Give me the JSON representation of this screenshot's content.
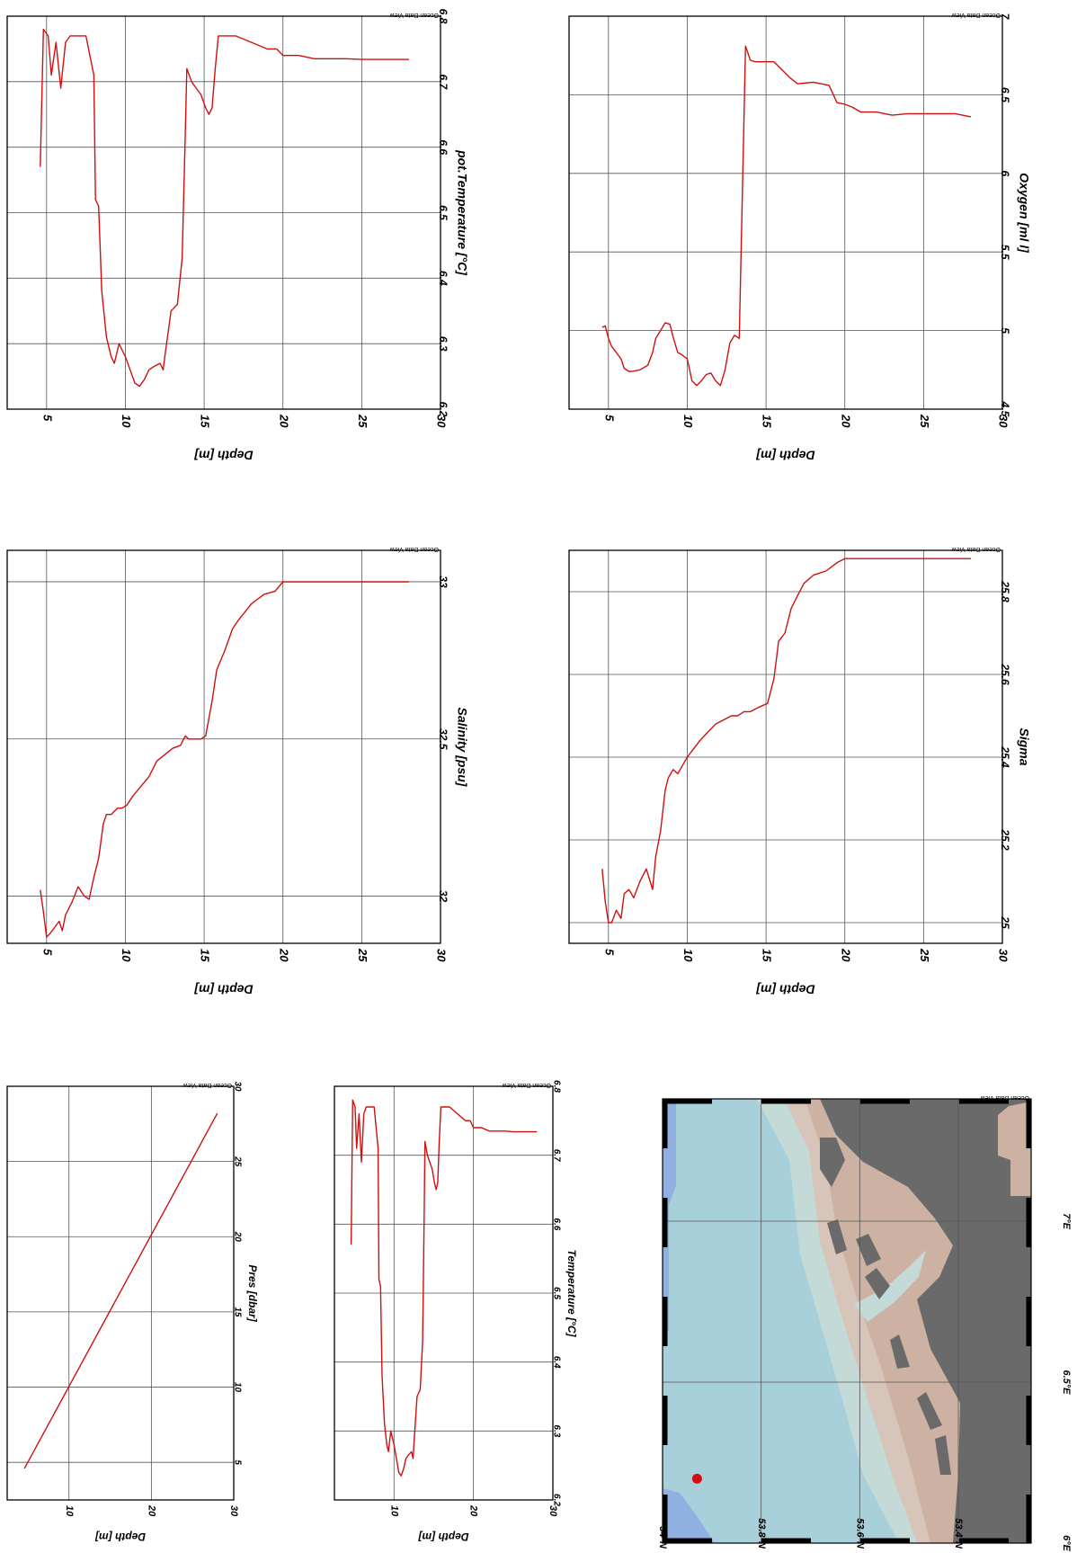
{
  "watermark": "Ocean Data View",
  "colors": {
    "profile_line": "#d01010",
    "grid": "#555555",
    "frame": "#000000",
    "station_dot": "#d01010",
    "ocean_deep": "#8fb0e0",
    "ocean_mid": "#a7d0da",
    "ocean_shallow": "#c3dad7",
    "tidal_flat": "#d7c5b9",
    "mudflat": "#cdb2a4",
    "land": "#6a6a6a"
  },
  "chart_data": [
    {
      "id": "pot_temperature",
      "type": "line",
      "xlabel": "Depth [m]",
      "ylabel": "pot.Temperature [°C]",
      "xlim": [
        2.5,
        30
      ],
      "ylim": [
        6.2,
        6.8
      ],
      "xticks": [
        "5",
        "10",
        "15",
        "20",
        "25",
        "30"
      ],
      "yticks": [
        "6.2",
        "6.3",
        "6.4",
        "6.5",
        "6.6",
        "6.7",
        "6.8"
      ],
      "grid": true,
      "series": [
        {
          "x": [
            4.6,
            4.8,
            5.1,
            5.3,
            5.6,
            5.9,
            6.2,
            6.5,
            6.8,
            7.5,
            8.0,
            8.1,
            8.3,
            8.5,
            8.8,
            9.1,
            9.3,
            9.6,
            10.0,
            10.6,
            10.9,
            11.2,
            11.5,
            11.8,
            12.2,
            12.4,
            12.5,
            12.9,
            13.3,
            13.6,
            13.8,
            13.9,
            14.2,
            14.5,
            14.8,
            15.1,
            15.3,
            15.5,
            15.7,
            15.9,
            17.0,
            18.0,
            19.0,
            19.6,
            20.0,
            21.0,
            22.0,
            23.0,
            24.0,
            25.0,
            26.0,
            27.0,
            28.0
          ],
          "y": [
            6.57,
            6.78,
            6.77,
            6.71,
            6.76,
            6.69,
            6.76,
            6.77,
            6.77,
            6.77,
            6.71,
            6.52,
            6.51,
            6.38,
            6.31,
            6.28,
            6.27,
            6.3,
            6.28,
            6.24,
            6.235,
            6.245,
            6.26,
            6.265,
            6.27,
            6.26,
            6.28,
            6.35,
            6.36,
            6.43,
            6.62,
            6.72,
            6.7,
            6.69,
            6.68,
            6.66,
            6.65,
            6.66,
            6.72,
            6.77,
            6.77,
            6.76,
            6.75,
            6.75,
            6.74,
            6.74,
            6.735,
            6.735,
            6.735,
            6.734,
            6.734,
            6.734,
            6.734
          ]
        }
      ]
    },
    {
      "id": "oxygen",
      "type": "line",
      "xlabel": "Depth [m]",
      "ylabel": "Oxygen [ml l]",
      "xlim": [
        2.5,
        30
      ],
      "ylim": [
        4.5,
        7
      ],
      "xticks": [
        "5",
        "10",
        "15",
        "20",
        "25",
        "30"
      ],
      "yticks": [
        "4.5",
        "5",
        "5.5",
        "6",
        "6.5",
        "7"
      ],
      "grid": true,
      "series": [
        {
          "x": [
            4.6,
            4.8,
            5.0,
            5.2,
            5.5,
            5.8,
            6.0,
            6.3,
            6.5,
            7.0,
            7.5,
            7.8,
            8.0,
            8.3,
            8.6,
            8.9,
            9.1,
            9.4,
            9.6,
            10.0,
            10.3,
            10.6,
            10.9,
            11.2,
            11.5,
            11.8,
            12.1,
            12.4,
            12.7,
            13.0,
            13.3,
            13.7,
            14.0,
            14.3,
            15.5,
            16.0,
            16.5,
            17.0,
            18.0,
            19.0,
            19.5,
            20.0,
            20.5,
            21.0,
            22.0,
            23.0,
            24.0,
            25.0,
            26.0,
            27.0,
            28.0
          ],
          "y": [
            5.02,
            5.03,
            4.95,
            4.9,
            4.86,
            4.82,
            4.76,
            4.74,
            4.74,
            4.75,
            4.78,
            4.86,
            4.95,
            5.0,
            5.05,
            5.04,
            4.96,
            4.86,
            4.85,
            4.82,
            4.68,
            4.65,
            4.68,
            4.72,
            4.73,
            4.68,
            4.65,
            4.75,
            4.92,
            4.97,
            4.95,
            6.81,
            6.72,
            6.71,
            6.71,
            6.66,
            6.61,
            6.57,
            6.58,
            6.56,
            6.45,
            6.44,
            6.42,
            6.39,
            6.39,
            6.37,
            6.38,
            6.38,
            6.38,
            6.38,
            6.36
          ]
        }
      ]
    },
    {
      "id": "salinity",
      "type": "line",
      "xlabel": "Depth [m]",
      "ylabel": "Salinity [psu]",
      "xlim": [
        2.5,
        30
      ],
      "ylim": [
        31.85,
        33.1
      ],
      "xticks": [
        "5",
        "10",
        "15",
        "20",
        "25",
        "30"
      ],
      "yticks": [
        "32",
        "32.5",
        "33"
      ],
      "grid": true,
      "series": [
        {
          "x": [
            4.6,
            4.8,
            5.0,
            5.2,
            5.5,
            5.8,
            6.0,
            6.2,
            6.6,
            7.0,
            7.4,
            7.7,
            8.0,
            8.3,
            8.6,
            8.8,
            9.1,
            9.5,
            9.8,
            10.1,
            10.5,
            11.0,
            11.5,
            12.0,
            12.5,
            13.0,
            13.5,
            13.8,
            14.0,
            14.4,
            14.8,
            15.1,
            15.5,
            15.8,
            16.3,
            16.8,
            17.2,
            18.0,
            18.8,
            19.5,
            20.0,
            21.0,
            22.0,
            23.0,
            24.0,
            25.0,
            26.0,
            27.0,
            28.0
          ],
          "y": [
            32.02,
            31.95,
            31.87,
            31.88,
            31.9,
            31.92,
            31.89,
            31.94,
            31.98,
            32.03,
            32.0,
            31.99,
            32.06,
            32.12,
            32.23,
            32.26,
            32.26,
            32.28,
            32.28,
            32.29,
            32.32,
            32.35,
            32.38,
            32.43,
            32.45,
            32.47,
            32.48,
            32.51,
            32.5,
            32.5,
            32.5,
            32.51,
            32.62,
            32.72,
            32.78,
            32.85,
            32.88,
            32.93,
            32.96,
            32.97,
            33.0,
            33.0,
            33.0,
            33.0,
            33.0,
            33.0,
            33.0,
            33.0,
            33.0
          ]
        }
      ]
    },
    {
      "id": "sigma",
      "type": "line",
      "xlabel": "Depth [m]",
      "ylabel": "Sigma",
      "xlim": [
        2.5,
        30
      ],
      "ylim": [
        24.95,
        25.9
      ],
      "xticks": [
        "5",
        "10",
        "15",
        "20",
        "25",
        "30"
      ],
      "yticks": [
        "25",
        "25.2",
        "25.4",
        "25.6",
        "25.8"
      ],
      "grid": true,
      "series": [
        {
          "x": [
            4.6,
            4.8,
            5.0,
            5.2,
            5.5,
            5.8,
            6.0,
            6.3,
            6.6,
            7.0,
            7.4,
            7.8,
            8.0,
            8.3,
            8.6,
            8.8,
            9.1,
            9.4,
            9.7,
            10.0,
            10.4,
            10.8,
            11.3,
            11.8,
            12.3,
            12.8,
            13.2,
            13.6,
            14.0,
            14.5,
            15.1,
            15.5,
            15.8,
            16.2,
            16.6,
            17.0,
            17.4,
            18.0,
            18.8,
            19.5,
            20.0,
            21.0,
            22.0,
            23.0,
            24.0,
            25.0,
            26.0,
            27.0,
            28.0
          ],
          "y": [
            25.13,
            25.05,
            25.0,
            25.0,
            25.03,
            25.01,
            25.07,
            25.08,
            25.06,
            25.1,
            25.13,
            25.08,
            25.16,
            25.22,
            25.32,
            25.35,
            25.37,
            25.36,
            25.38,
            25.4,
            25.42,
            25.44,
            25.46,
            25.48,
            25.49,
            25.5,
            25.5,
            25.51,
            25.51,
            25.52,
            25.53,
            25.59,
            25.68,
            25.7,
            25.76,
            25.79,
            25.82,
            25.84,
            25.85,
            25.87,
            25.88,
            25.88,
            25.88,
            25.88,
            25.88,
            25.88,
            25.88,
            25.88,
            25.88
          ]
        }
      ]
    },
    {
      "id": "pressure",
      "type": "line",
      "xlabel": "Depth [m]",
      "ylabel": "Pres [dbar]",
      "xlim": [
        2.5,
        30
      ],
      "ylim": [
        2.5,
        30
      ],
      "xticks": [
        "10",
        "20",
        "30"
      ],
      "yticks": [
        "5",
        "10",
        "15",
        "20",
        "25",
        "30"
      ],
      "grid": true,
      "series": [
        {
          "x": [
            4.6,
            28.0
          ],
          "y": [
            4.6,
            28.2
          ]
        }
      ]
    },
    {
      "id": "temperature",
      "type": "line",
      "xlabel": "Depth [m]",
      "ylabel": "Temperature [°C]",
      "xlim": [
        2.5,
        30
      ],
      "ylim": [
        6.2,
        6.8
      ],
      "xticks": [
        "10",
        "20",
        "30"
      ],
      "yticks": [
        "6.2",
        "6.3",
        "6.4",
        "6.5",
        "6.6",
        "6.7",
        "6.8"
      ],
      "grid": true,
      "series": [
        {
          "x": [
            4.6,
            4.8,
            5.1,
            5.3,
            5.6,
            5.9,
            6.2,
            6.5,
            6.8,
            7.5,
            8.0,
            8.1,
            8.3,
            8.5,
            8.8,
            9.1,
            9.3,
            9.6,
            10.0,
            10.6,
            10.9,
            11.2,
            11.5,
            11.8,
            12.2,
            12.4,
            12.5,
            12.9,
            13.3,
            13.6,
            13.8,
            13.9,
            14.2,
            14.5,
            14.8,
            15.1,
            15.3,
            15.5,
            15.7,
            15.9,
            17.0,
            18.0,
            19.0,
            19.6,
            20.0,
            21.0,
            22.0,
            23.0,
            24.0,
            25.0,
            26.0,
            27.0,
            28.0
          ],
          "y": [
            6.57,
            6.78,
            6.77,
            6.71,
            6.76,
            6.69,
            6.76,
            6.77,
            6.77,
            6.77,
            6.71,
            6.52,
            6.51,
            6.38,
            6.31,
            6.28,
            6.27,
            6.3,
            6.28,
            6.24,
            6.235,
            6.245,
            6.26,
            6.265,
            6.27,
            6.26,
            6.28,
            6.35,
            6.36,
            6.43,
            6.62,
            6.72,
            6.7,
            6.69,
            6.68,
            6.66,
            6.65,
            6.66,
            6.72,
            6.77,
            6.77,
            6.76,
            6.75,
            6.75,
            6.74,
            6.74,
            6.735,
            6.735,
            6.735,
            6.734,
            6.734,
            6.734,
            6.734
          ]
        }
      ]
    }
  ],
  "map": {
    "lat_labels": [
      "54°N",
      "53.8°N",
      "53.6°N",
      "53.4°N"
    ],
    "lon_labels": [
      "6°E",
      "6.5°E",
      "7°E"
    ],
    "station": {
      "lon": 6.2,
      "lat": 53.93
    }
  }
}
